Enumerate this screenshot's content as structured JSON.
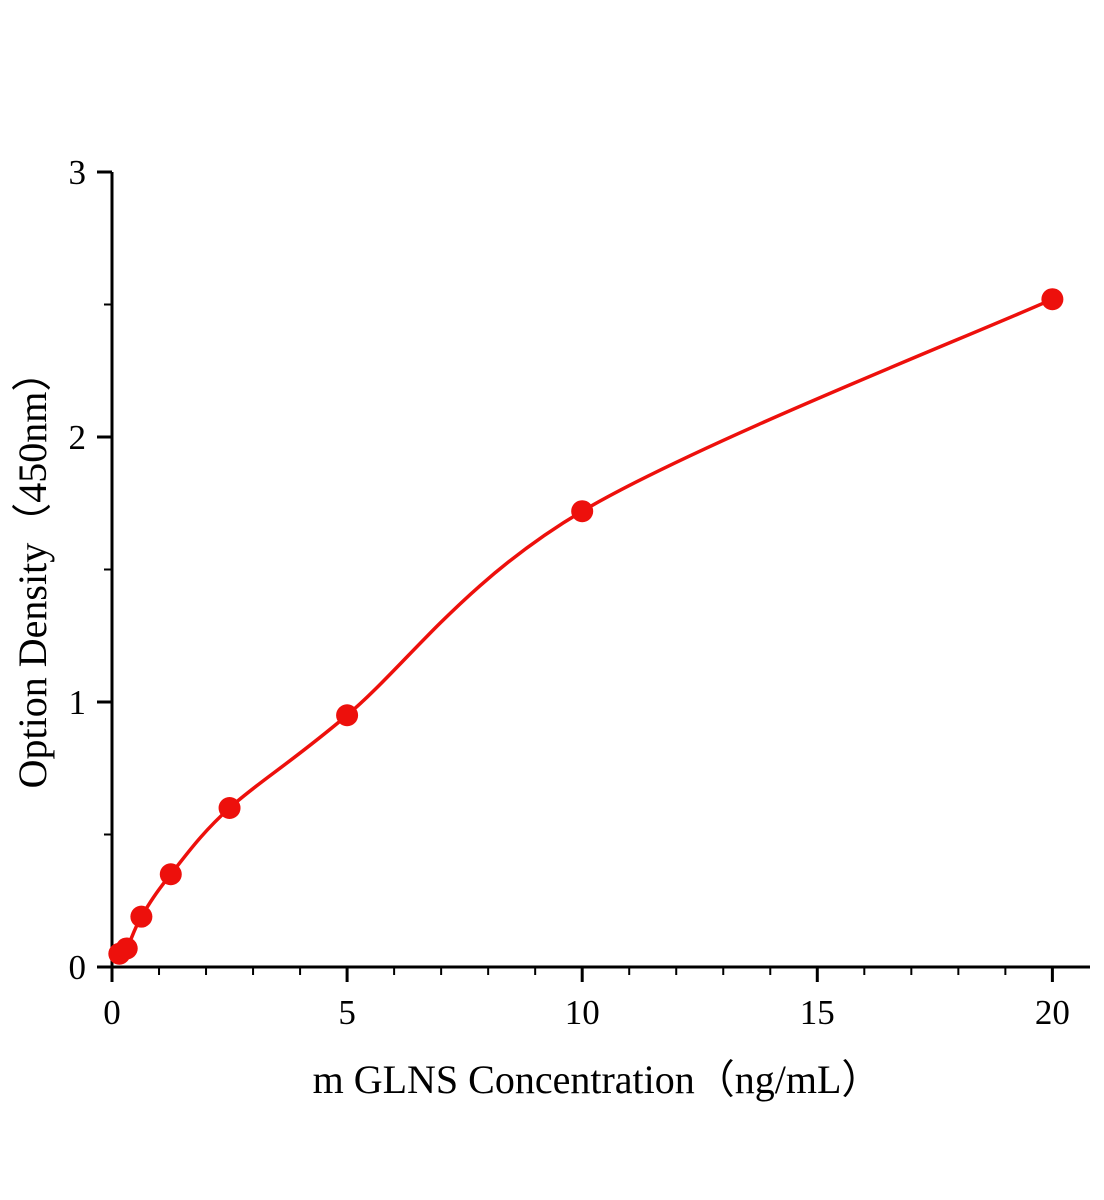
{
  "chart_data": {
    "type": "scatter",
    "title": "",
    "xlabel": "m GLNS Concentration（ng/mL）",
    "ylabel": "Option Density（450nm）",
    "x": [
      0.156,
      0.313,
      0.625,
      1.25,
      2.5,
      5,
      10,
      20
    ],
    "y": [
      0.05,
      0.07,
      0.19,
      0.35,
      0.6,
      0.95,
      1.72,
      2.52
    ],
    "xlim": [
      0,
      20.8
    ],
    "ylim": [
      0,
      3
    ],
    "x_ticks": [
      0,
      5,
      10,
      15,
      20
    ],
    "y_ticks": [
      0,
      1,
      2,
      3
    ],
    "x_minor_step": 1,
    "y_minor_step": 0.5,
    "curve_color": "#ed100c",
    "point_color": "#ed100c",
    "axis_color": "#000000",
    "grid": false,
    "legend_position": "none"
  }
}
